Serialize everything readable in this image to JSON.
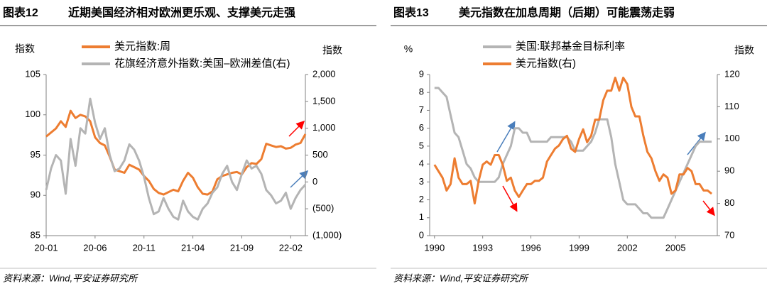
{
  "chart_data": [
    {
      "type": "line",
      "label": "图表12",
      "title": "近期美国经济相对欧洲更乐观、支撑美元走强",
      "source": "资料来源：Wind,平安证券研究所",
      "y_label": "指数",
      "y2_label": "指数",
      "categories": [
        "20-01",
        null,
        null,
        null,
        null,
        null,
        null,
        null,
        null,
        null,
        "20-06",
        null,
        null,
        null,
        null,
        null,
        null,
        null,
        null,
        null,
        "20-11",
        null,
        null,
        null,
        null,
        null,
        null,
        null,
        null,
        null,
        "21-04",
        null,
        null,
        null,
        null,
        null,
        null,
        null,
        null,
        null,
        "21-09",
        null,
        null,
        null,
        null,
        null,
        null,
        null,
        null,
        null,
        "22-02",
        null,
        null,
        null
      ],
      "ylim": [
        85,
        105
      ],
      "yticks": [
        85,
        90,
        95,
        100,
        105
      ],
      "y2lim": [
        -1000,
        2000
      ],
      "y2ticks": [
        {
          "value": -1000,
          "label": "(1,000)"
        },
        {
          "value": -500,
          "label": "(500)"
        },
        0,
        500,
        {
          "value": 1000,
          "label": "1,000"
        },
        {
          "value": 1500,
          "label": "1,500"
        },
        {
          "value": 2000,
          "label": "2,000"
        }
      ],
      "series": [
        {
          "name": "美元指数:周",
          "color": "#ed7d31",
          "values": [
            97.3,
            97.8,
            98.3,
            99.2,
            98.5,
            100.5,
            99.6,
            100.0,
            99.8,
            99.2,
            97.2,
            96.5,
            96.2,
            94.8,
            93.2,
            93.0,
            92.8,
            93.8,
            93.5,
            93.2,
            92.4,
            91.8,
            90.8,
            90.3,
            90.1,
            90.4,
            90.7,
            90.5,
            91.8,
            92.8,
            92.2,
            91.0,
            90.2,
            90.1,
            90.5,
            92.0,
            92.4,
            92.6,
            92.8,
            92.9,
            92.6,
            93.5,
            94.0,
            93.9,
            94.5,
            96.4,
            96.2,
            96.0,
            96.1,
            95.8,
            95.9,
            96.3,
            96.5,
            97.6
          ]
        },
        {
          "name": "花旗经济意外指数:美国–欧洲差值(右)",
          "color": "#b4b4b4",
          "axis": "y2",
          "values": [
            -150,
            250,
            500,
            400,
            -220,
            800,
            300,
            1000,
            900,
            1550,
            1100,
            800,
            1000,
            500,
            200,
            250,
            400,
            700,
            600,
            400,
            100,
            -300,
            -600,
            -550,
            -300,
            -500,
            -650,
            -700,
            -350,
            -550,
            -650,
            -700,
            -500,
            -400,
            -200,
            -100,
            150,
            300,
            0,
            -150,
            150,
            400,
            250,
            300,
            150,
            -150,
            -250,
            -400,
            -350,
            -200,
            -500,
            -300,
            -150,
            -50
          ]
        }
      ]
    },
    {
      "type": "line",
      "label": "图表13",
      "title": "美元指数在加息周期（后期）可能震荡走弱",
      "source": "资料来源：Wind,平安证券研究所",
      "y_label": "%",
      "y2_label": "指数",
      "x": [
        1990,
        1990.25,
        1990.5,
        1990.75,
        1991,
        1991.25,
        1991.5,
        1991.75,
        1992,
        1992.25,
        1992.5,
        1992.75,
        1993,
        1993.25,
        1993.5,
        1993.75,
        1994,
        1994.25,
        1994.5,
        1994.75,
        1995,
        1995.25,
        1995.5,
        1995.75,
        1996,
        1996.25,
        1996.5,
        1996.75,
        1997,
        1997.25,
        1997.5,
        1997.75,
        1998,
        1998.25,
        1998.5,
        1998.75,
        1999,
        1999.25,
        1999.5,
        1999.75,
        2000,
        2000.25,
        2000.5,
        2000.75,
        2001,
        2001.25,
        2001.5,
        2001.75,
        2002,
        2002.25,
        2002.5,
        2002.75,
        2003,
        2003.25,
        2003.5,
        2003.75,
        2004,
        2004.25,
        2004.5,
        2004.75,
        2005,
        2005.25,
        2005.5,
        2005.75,
        2006,
        2006.25,
        2006.5,
        2006.75,
        2007,
        2007.25
      ],
      "xlim": [
        1989.7,
        2007.6
      ],
      "xticks": [
        1990,
        1993,
        1996,
        1999,
        2002,
        2005
      ],
      "ylim": [
        0,
        9
      ],
      "yticks": [
        0,
        1,
        2,
        3,
        4,
        5,
        6,
        7,
        8,
        9
      ],
      "y2lim": [
        70,
        120
      ],
      "y2ticks": [
        70,
        80,
        90,
        100,
        110,
        120
      ],
      "series": [
        {
          "name": "美国:联邦基金目标利率",
          "color": "#b4b4b4",
          "values": [
            8.25,
            8.25,
            8.0,
            7.75,
            6.75,
            5.75,
            5.5,
            4.75,
            4.0,
            3.75,
            3.25,
            3.0,
            3,
            3,
            3,
            3,
            3.25,
            4.0,
            4.5,
            5.0,
            6.0,
            6.0,
            5.75,
            5.75,
            5.25,
            5.25,
            5.25,
            5.25,
            5.25,
            5.5,
            5.5,
            5.5,
            5.5,
            5.5,
            5.25,
            4.75,
            4.75,
            4.75,
            5.0,
            5.25,
            5.75,
            6.5,
            6.5,
            6.5,
            5.5,
            4.0,
            3.0,
            2.0,
            1.75,
            1.75,
            1.75,
            1.5,
            1.25,
            1.25,
            1.0,
            1.0,
            1.0,
            1.0,
            1.5,
            2.0,
            2.5,
            3.0,
            3.5,
            4.0,
            4.5,
            5.0,
            5.25,
            5.25,
            5.25,
            5.25
          ]
        },
        {
          "name": "美元指数(右)",
          "color": "#ed7d31",
          "axis": "y2",
          "values": [
            92,
            90,
            88,
            84,
            86,
            94,
            88,
            86,
            86,
            87,
            80,
            87,
            92,
            93,
            92,
            95,
            95,
            92,
            87,
            88,
            84,
            82,
            84,
            86,
            86,
            87,
            87,
            88,
            93,
            95,
            97,
            98,
            100,
            101,
            97,
            96,
            100,
            103,
            99,
            101,
            106,
            106,
            112,
            115,
            115,
            119,
            115,
            119,
            117,
            110,
            107,
            107,
            101,
            96,
            94,
            90,
            87,
            89,
            88,
            83,
            84,
            89,
            89,
            91,
            90,
            86,
            86,
            84,
            84,
            83
          ]
        }
      ]
    }
  ]
}
